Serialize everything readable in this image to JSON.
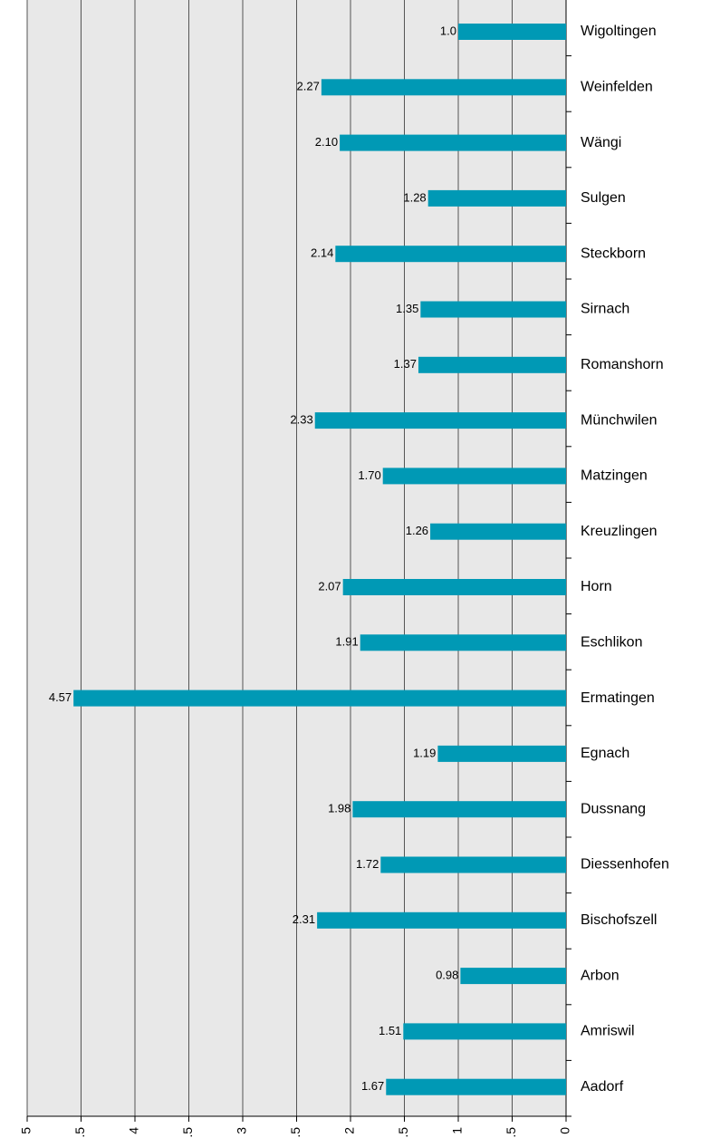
{
  "chart_data": {
    "type": "barh",
    "categories": [
      "Wigoltingen",
      "Weinfelden",
      "Wängi",
      "Sulgen",
      "Steckborn",
      "Sirnach",
      "Romanshorn",
      "Münchwilen",
      "Matzingen",
      "Kreuzlingen",
      "Horn",
      "Eschlikon",
      "Ermatingen",
      "Egnach",
      "Dussnang",
      "Diessenhofen",
      "Bischofszell",
      "Arbon",
      "Amriswil",
      "Aadorf"
    ],
    "values": [
      1.0,
      2.27,
      2.1,
      1.28,
      2.14,
      1.35,
      1.37,
      2.33,
      1.7,
      1.26,
      2.07,
      1.91,
      4.57,
      1.19,
      1.98,
      1.72,
      2.31,
      0.98,
      1.51,
      1.67
    ],
    "value_labels": [
      "1.0",
      "2.27",
      "2.10",
      "1.28",
      "2.14",
      "1.35",
      "1.37",
      "2.33",
      "1.70",
      "1.26",
      "2.07",
      "1.91",
      "4.57",
      "1.19",
      "1.98",
      "1.72",
      "2.31",
      "0.98",
      "1.51",
      "1.67"
    ],
    "color": "#0099b5",
    "xlim": [
      0,
      5
    ],
    "xticks": [
      0,
      0.5,
      1,
      1.5,
      2,
      2.5,
      3,
      3.5,
      4,
      4.5,
      5
    ],
    "x_reversed": true,
    "grid": true
  }
}
